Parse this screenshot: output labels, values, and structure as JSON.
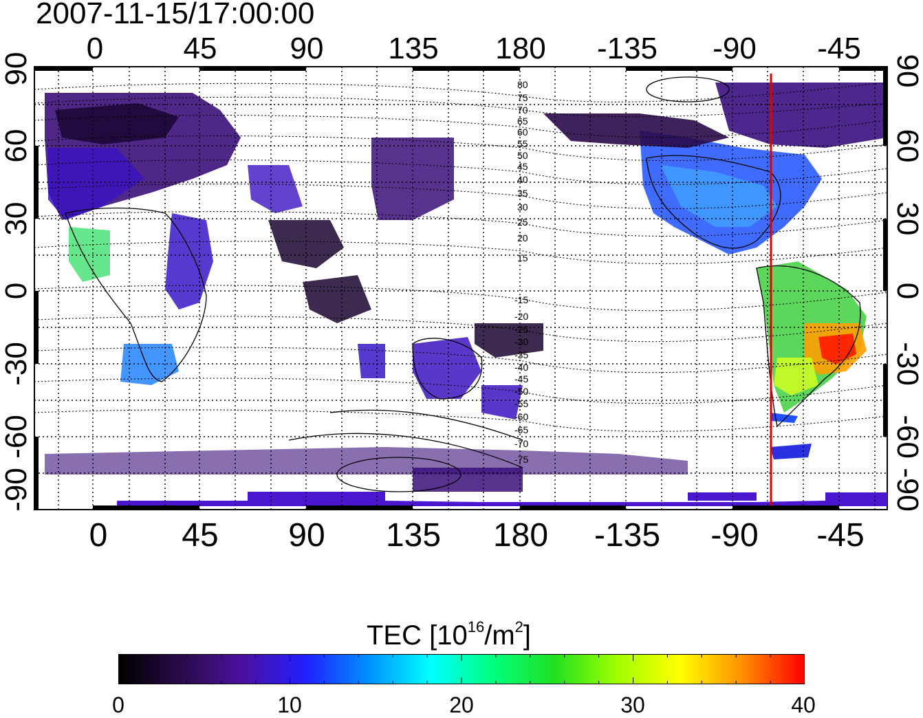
{
  "title": "2007-11-15/17:00:00",
  "map": {
    "lon_ticks_bottom": [
      "0",
      "45",
      "90",
      "135",
      "180",
      "-135",
      "-90",
      "-45"
    ],
    "lon_ticks_top": [
      "0",
      "45",
      "90",
      "135",
      "180",
      "-135",
      "-90",
      "-45"
    ],
    "lat_ticks_left": [
      "90",
      "60",
      "30",
      "0",
      "-30",
      "-60",
      "-90"
    ],
    "lat_ticks_right": [
      "90",
      "60",
      "30",
      "0",
      "-30",
      "-60",
      "-90"
    ],
    "lon_tick_values": [
      0,
      45,
      90,
      135,
      180,
      -135,
      -90,
      -45
    ],
    "lat_tick_values": [
      90,
      60,
      30,
      0,
      -30,
      -60,
      -90
    ],
    "lon_range": [
      -20,
      340
    ],
    "lat_range": [
      -90,
      90
    ],
    "meridian_marker_lon": -75,
    "meridian_marker_color": "#e00000",
    "magnetic_contour_labels_north": [
      "80",
      "75",
      "70",
      "65",
      "60",
      "55",
      "50",
      "45",
      "40",
      "35",
      "30",
      "25",
      "20",
      "15"
    ],
    "magnetic_contour_labels_south": [
      "-15",
      "-20",
      "-25",
      "-30",
      "-35",
      "-40",
      "-45",
      "-50",
      "-55",
      "-60",
      "-65",
      "-70",
      "-75"
    ]
  },
  "colorbar": {
    "title_main": "TEC  [10",
    "title_exp": "16",
    "title_unit": "/m",
    "title_exp2": "2",
    "title_close": "]",
    "tick_labels": [
      "0",
      "10",
      "20",
      "30",
      "40"
    ],
    "tick_values": [
      0,
      10,
      20,
      30,
      40
    ],
    "range": [
      0,
      40
    ],
    "colors": [
      "#000000",
      "#2a0a4a",
      "#4b10a0",
      "#2020ff",
      "#0090ff",
      "#00ffff",
      "#00ff80",
      "#20e020",
      "#a0ff00",
      "#ffff00",
      "#ff9000",
      "#ff0000"
    ]
  }
}
